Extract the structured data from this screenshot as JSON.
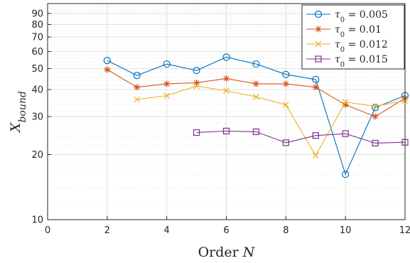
{
  "chart_data": {
    "type": "line",
    "x_scale": "linear",
    "y_scale": "log",
    "xlim": [
      0,
      12
    ],
    "ylim": [
      10,
      100
    ],
    "x_ticks": [
      "0",
      "2",
      "4",
      "6",
      "8",
      "10",
      "12"
    ],
    "y_ticks": [
      "10",
      "20",
      "30",
      "40",
      "50",
      "60",
      "70",
      "80",
      "90"
    ],
    "grid": true,
    "legend_position": "top-right",
    "xlabel": {
      "text": "Order",
      "var": "N"
    },
    "ylabel": {
      "var": "X",
      "sub": "bound"
    },
    "series": [
      {
        "name": "τ0 = 0.005",
        "legend": {
          "sym": "τ",
          "sub": "0",
          "val": " = 0.005"
        },
        "color": "#0072BD",
        "marker": "circle",
        "x": [
          2,
          3,
          4,
          5,
          6,
          7,
          8,
          9,
          10,
          11,
          12
        ],
        "y": [
          54.5,
          46.5,
          52.5,
          49,
          56.5,
          52.5,
          47,
          44.5,
          16.2,
          33,
          37.5
        ]
      },
      {
        "name": "τ0 = 0.01",
        "legend": {
          "sym": "τ",
          "sub": "0",
          "val": " = 0.01"
        },
        "color": "#D95319",
        "marker": "asterisk",
        "x": [
          2,
          3,
          4,
          5,
          6,
          7,
          8,
          9,
          10,
          11,
          12
        ],
        "y": [
          49.5,
          41,
          42.5,
          43,
          45,
          42.5,
          42.5,
          41,
          34,
          30,
          36.5
        ]
      },
      {
        "name": "τ0 = 0.012",
        "legend": {
          "sym": "τ",
          "sub": "0",
          "val": " = 0.012"
        },
        "color": "#EDB120",
        "marker": "x",
        "x": [
          3,
          4,
          5,
          6,
          7,
          8,
          9,
          10,
          11,
          12
        ],
        "y": [
          36,
          37.5,
          41.5,
          39.5,
          37,
          34,
          19.8,
          35,
          33.5,
          35.5
        ]
      },
      {
        "name": "τ0 = 0.015",
        "legend": {
          "sym": "τ",
          "sub": "0",
          "val": " = 0.015"
        },
        "color": "#7E2F8E",
        "marker": "square",
        "x": [
          5,
          6,
          7,
          8,
          9,
          10,
          11,
          12
        ],
        "y": [
          25.3,
          25.7,
          25.5,
          22.7,
          24.5,
          25,
          22.6,
          22.8
        ]
      }
    ]
  }
}
